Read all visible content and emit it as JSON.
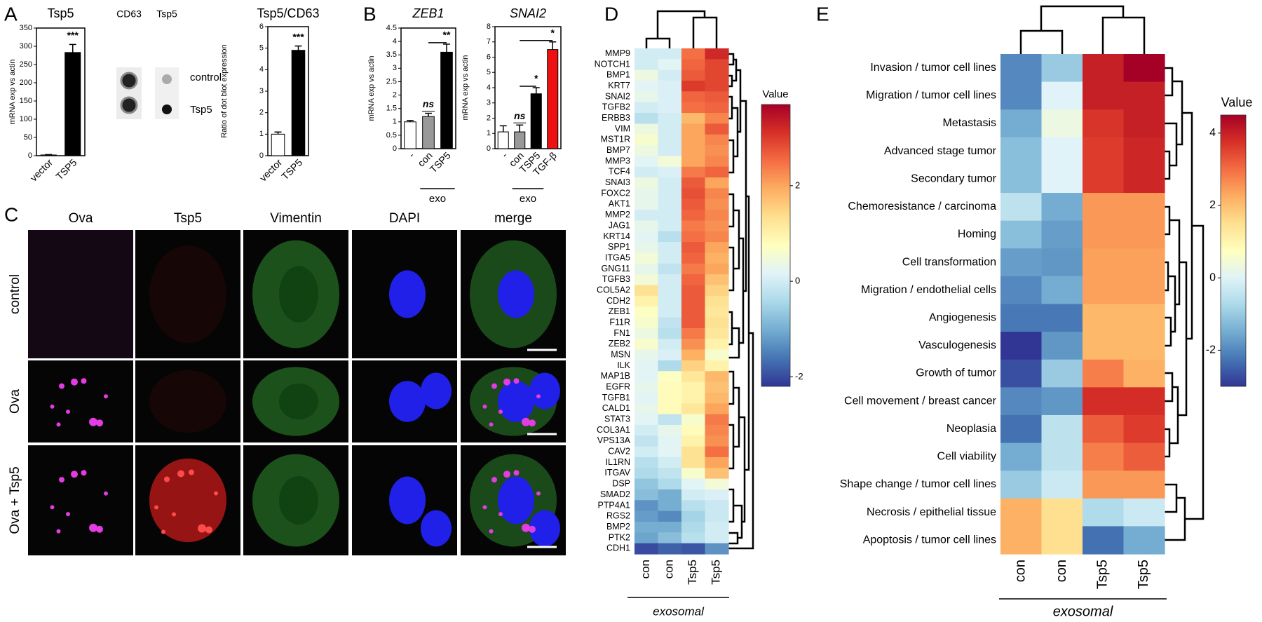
{
  "panel_letters": [
    "A",
    "B",
    "C",
    "D",
    "E"
  ],
  "dot_blot": {
    "columns": [
      "CD63",
      "Tsp5"
    ],
    "rows": [
      "control",
      "Tsp5"
    ]
  },
  "microscopy": {
    "columns": [
      "Ova",
      "Tsp5",
      "Vimentin",
      "DAPI",
      "merge"
    ],
    "rows": [
      "control",
      "Ova",
      "Ova + Tsp5"
    ]
  },
  "chart_data": [
    {
      "type": "bar",
      "title": "Tsp5",
      "ylabel": "mRNA exp vs actin",
      "categories": [
        "vector",
        "TSP5"
      ],
      "values": [
        2,
        283
      ],
      "errors": [
        1,
        22
      ],
      "colors": [
        "#ffffff",
        "#000000"
      ],
      "annotations": [
        null,
        "***"
      ],
      "ylim": [
        0,
        350
      ],
      "yticks": [
        0,
        50,
        100,
        150,
        200,
        250,
        300,
        350
      ]
    },
    {
      "type": "bar",
      "title": "Tsp5/CD63",
      "ylabel": "Ratio of dot blot expression",
      "categories": [
        "vector",
        "TSP5"
      ],
      "values": [
        1,
        4.9
      ],
      "errors": [
        0.1,
        0.2
      ],
      "colors": [
        "#ffffff",
        "#000000"
      ],
      "annotations": [
        null,
        "***"
      ],
      "ylim": [
        0,
        6
      ],
      "yticks": [
        0,
        1,
        2,
        3,
        4,
        5,
        6
      ]
    },
    {
      "type": "bar",
      "title": "ZEB1",
      "ylabel": "mRNA exp vs actin",
      "categories": [
        "-",
        "con",
        "TSP5"
      ],
      "values": [
        1,
        1.2,
        3.6
      ],
      "errors": [
        0.05,
        0.12,
        0.3
      ],
      "colors": [
        "#ffffff",
        "#999999",
        "#000000"
      ],
      "annotations": [
        null,
        "ns",
        "**"
      ],
      "group": {
        "label": "exo",
        "categories": [
          "con",
          "TSP5"
        ]
      },
      "ylim": [
        0,
        4.5
      ],
      "yticks": [
        0,
        0.5,
        1,
        1.5,
        2,
        2.5,
        3,
        3.5,
        4,
        4.5
      ]
    },
    {
      "type": "bar",
      "title": "SNAI2",
      "ylabel": "mRNA exp vs actin",
      "categories": [
        "-",
        "con",
        "TSP5",
        "TGF-β"
      ],
      "values": [
        1.1,
        1.1,
        3.6,
        6.5
      ],
      "errors": [
        0.4,
        0.45,
        0.4,
        0.5
      ],
      "colors": [
        "#ffffff",
        "#999999",
        "#000000",
        "#ee1111"
      ],
      "annotations": [
        null,
        "ns",
        "*",
        "*"
      ],
      "group": {
        "label": "exo",
        "categories": [
          "con",
          "TSP5"
        ]
      },
      "ylim": [
        0,
        8
      ],
      "yticks": [
        0,
        1,
        2,
        3,
        4,
        5,
        6,
        7,
        8
      ]
    },
    {
      "type": "heatmap",
      "xlabel": "exosomal",
      "columns": [
        "con",
        "con",
        "Tsp5",
        "Tsp5"
      ],
      "rows": [
        "MMP9",
        "NOTCH1",
        "BMP1",
        "KRT7",
        "SNAI2",
        "TGFB2",
        "ERBB3",
        "VIM",
        "MST1R",
        "BMP7",
        "MMP3",
        "TCF4",
        "SNAI3",
        "FOXC2",
        "AKT1",
        "MMP2",
        "JAG1",
        "KRT14",
        "SPP1",
        "ITGA5",
        "GNG11",
        "TGFB3",
        "COL5A2",
        "CDH2",
        "ZEB1",
        "F11R",
        "FN1",
        "ZEB2",
        "MSN",
        "ILK",
        "MAP1B",
        "EGFR",
        "TGFB1",
        "CALD1",
        "STAT3",
        "COL3A1",
        "VPS13A",
        "CAV2",
        "IL1RN",
        "ITGAV",
        "DSP",
        "SMAD2",
        "PTP4A1",
        "RGS2",
        "BMP2",
        "PTK2",
        "CDH1"
      ],
      "values": [
        [
          0,
          0,
          2.5,
          3.2
        ],
        [
          0,
          0.2,
          2.6,
          2.9
        ],
        [
          0.4,
          0,
          2.7,
          2.9
        ],
        [
          0.2,
          0.1,
          3.0,
          2.9
        ],
        [
          0.3,
          0.1,
          2.6,
          2.7
        ],
        [
          0,
          0.1,
          2.5,
          2.6
        ],
        [
          -0.3,
          0,
          1.8,
          2.3
        ],
        [
          0.4,
          0,
          2.0,
          2.7
        ],
        [
          0.6,
          0,
          2.0,
          2.3
        ],
        [
          0.4,
          0,
          2.0,
          2.2
        ],
        [
          0.2,
          0.5,
          2.0,
          2.3
        ],
        [
          0,
          0.1,
          2.4,
          2.6
        ],
        [
          0.4,
          0,
          2.7,
          2.0
        ],
        [
          0.3,
          0,
          2.8,
          2.3
        ],
        [
          0.3,
          0,
          2.7,
          2.2
        ],
        [
          0,
          0,
          2.6,
          2.3
        ],
        [
          0.3,
          0,
          2.4,
          2.2
        ],
        [
          0.2,
          -0.3,
          2.5,
          2.3
        ],
        [
          0.3,
          0,
          2.7,
          2.0
        ],
        [
          0.5,
          0,
          2.6,
          1.9
        ],
        [
          0.3,
          -0.2,
          2.4,
          2.0
        ],
        [
          0.5,
          0,
          2.6,
          1.7
        ],
        [
          1.3,
          0,
          2.7,
          1.5
        ],
        [
          1.0,
          0,
          2.7,
          1.3
        ],
        [
          0.7,
          0,
          2.7,
          1.2
        ],
        [
          0.6,
          -0.2,
          2.7,
          1.3
        ],
        [
          0.4,
          -0.3,
          2.4,
          1.2
        ],
        [
          0.6,
          0,
          2.2,
          1.0
        ],
        [
          0.3,
          0.1,
          1.9,
          0.6
        ],
        [
          0.2,
          -0.4,
          1.5,
          1.0
        ],
        [
          0.2,
          0.7,
          1.2,
          1.8
        ],
        [
          0.3,
          0.8,
          1.0,
          1.7
        ],
        [
          0.2,
          0.8,
          1.0,
          1.8
        ],
        [
          0.3,
          0.8,
          1.2,
          2.0
        ],
        [
          0.2,
          -0.2,
          0.6,
          2.4
        ],
        [
          0,
          0.3,
          0.8,
          2.3
        ],
        [
          -0.2,
          0.2,
          1.0,
          2.2
        ],
        [
          0,
          0.2,
          1.3,
          2.5
        ],
        [
          -0.3,
          0,
          1.3,
          2.0
        ],
        [
          -0.4,
          -0.2,
          0.6,
          1.7
        ],
        [
          -0.7,
          -0.4,
          0.2,
          0.5
        ],
        [
          -0.8,
          -1.0,
          0,
          0.1
        ],
        [
          -1.3,
          -1.0,
          -0.3,
          -0.1
        ],
        [
          -1.2,
          -1.4,
          -0.5,
          -0.1
        ],
        [
          -1.0,
          -1.0,
          -0.4,
          0
        ],
        [
          -1.1,
          -0.8,
          -0.3,
          0
        ],
        [
          -2.0,
          -1.8,
          -1.9,
          -1.3
        ]
      ],
      "colormap": "RdYlBu_r",
      "colorbar": {
        "label": "Value",
        "lim": [
          -2.2,
          3.7
        ],
        "ticks": [
          -2,
          0,
          2
        ]
      }
    },
    {
      "type": "heatmap",
      "xlabel": "exosomal",
      "columns": [
        "con",
        "con",
        "Tsp5",
        "Tsp5"
      ],
      "rows": [
        "Invasion / tumor cell lines",
        "Migration / tumor cell lines",
        "Metastasis",
        "Advanced stage tumor",
        "Secondary tumor",
        "Chemoresistance / carcinoma",
        "Homing",
        "Cell transformation",
        "Migration / endothelial cells",
        "Angiogenesis",
        "Vasculogenesis",
        "Growth of tumor",
        "Cell movement / breast cancer",
        "Neoplasia",
        "Cell viability",
        "Shape change / tumor cell lines",
        "Necrosis / epithelial tissue",
        "Apoptosis / tumor cell lines"
      ],
      "values": [
        [
          -2,
          -1,
          4,
          4.5
        ],
        [
          -2,
          0,
          4,
          4
        ],
        [
          -1.5,
          0.3,
          3.7,
          4
        ],
        [
          -1.2,
          0,
          3.6,
          3.9
        ],
        [
          -1.2,
          0,
          3.6,
          3.9
        ],
        [
          -0.5,
          -1.5,
          2.5,
          2.5
        ],
        [
          -1.2,
          -1.7,
          2.5,
          2.5
        ],
        [
          -1.7,
          -1.8,
          2.4,
          2.4
        ],
        [
          -2,
          -1.5,
          2.4,
          2.4
        ],
        [
          -2.2,
          -2.2,
          2.1,
          2.1
        ],
        [
          -3,
          -1.8,
          2.1,
          2.1
        ],
        [
          -2.7,
          -1,
          2.8,
          2.2
        ],
        [
          -2,
          -1.8,
          3.8,
          3.8
        ],
        [
          -2.3,
          -0.5,
          3.2,
          3.6
        ],
        [
          -1.5,
          -0.5,
          2.8,
          3.2
        ],
        [
          -1,
          -0.3,
          2.5,
          2.5
        ],
        [
          2.2,
          1.5,
          -0.7,
          -0.3
        ],
        [
          2.2,
          1.5,
          -2.3,
          -1.5
        ]
      ],
      "colormap": "RdYlBu_r",
      "colorbar": {
        "label": "Value",
        "lim": [
          -3,
          4.5
        ],
        "ticks": [
          -2,
          0,
          2,
          4
        ]
      }
    }
  ]
}
